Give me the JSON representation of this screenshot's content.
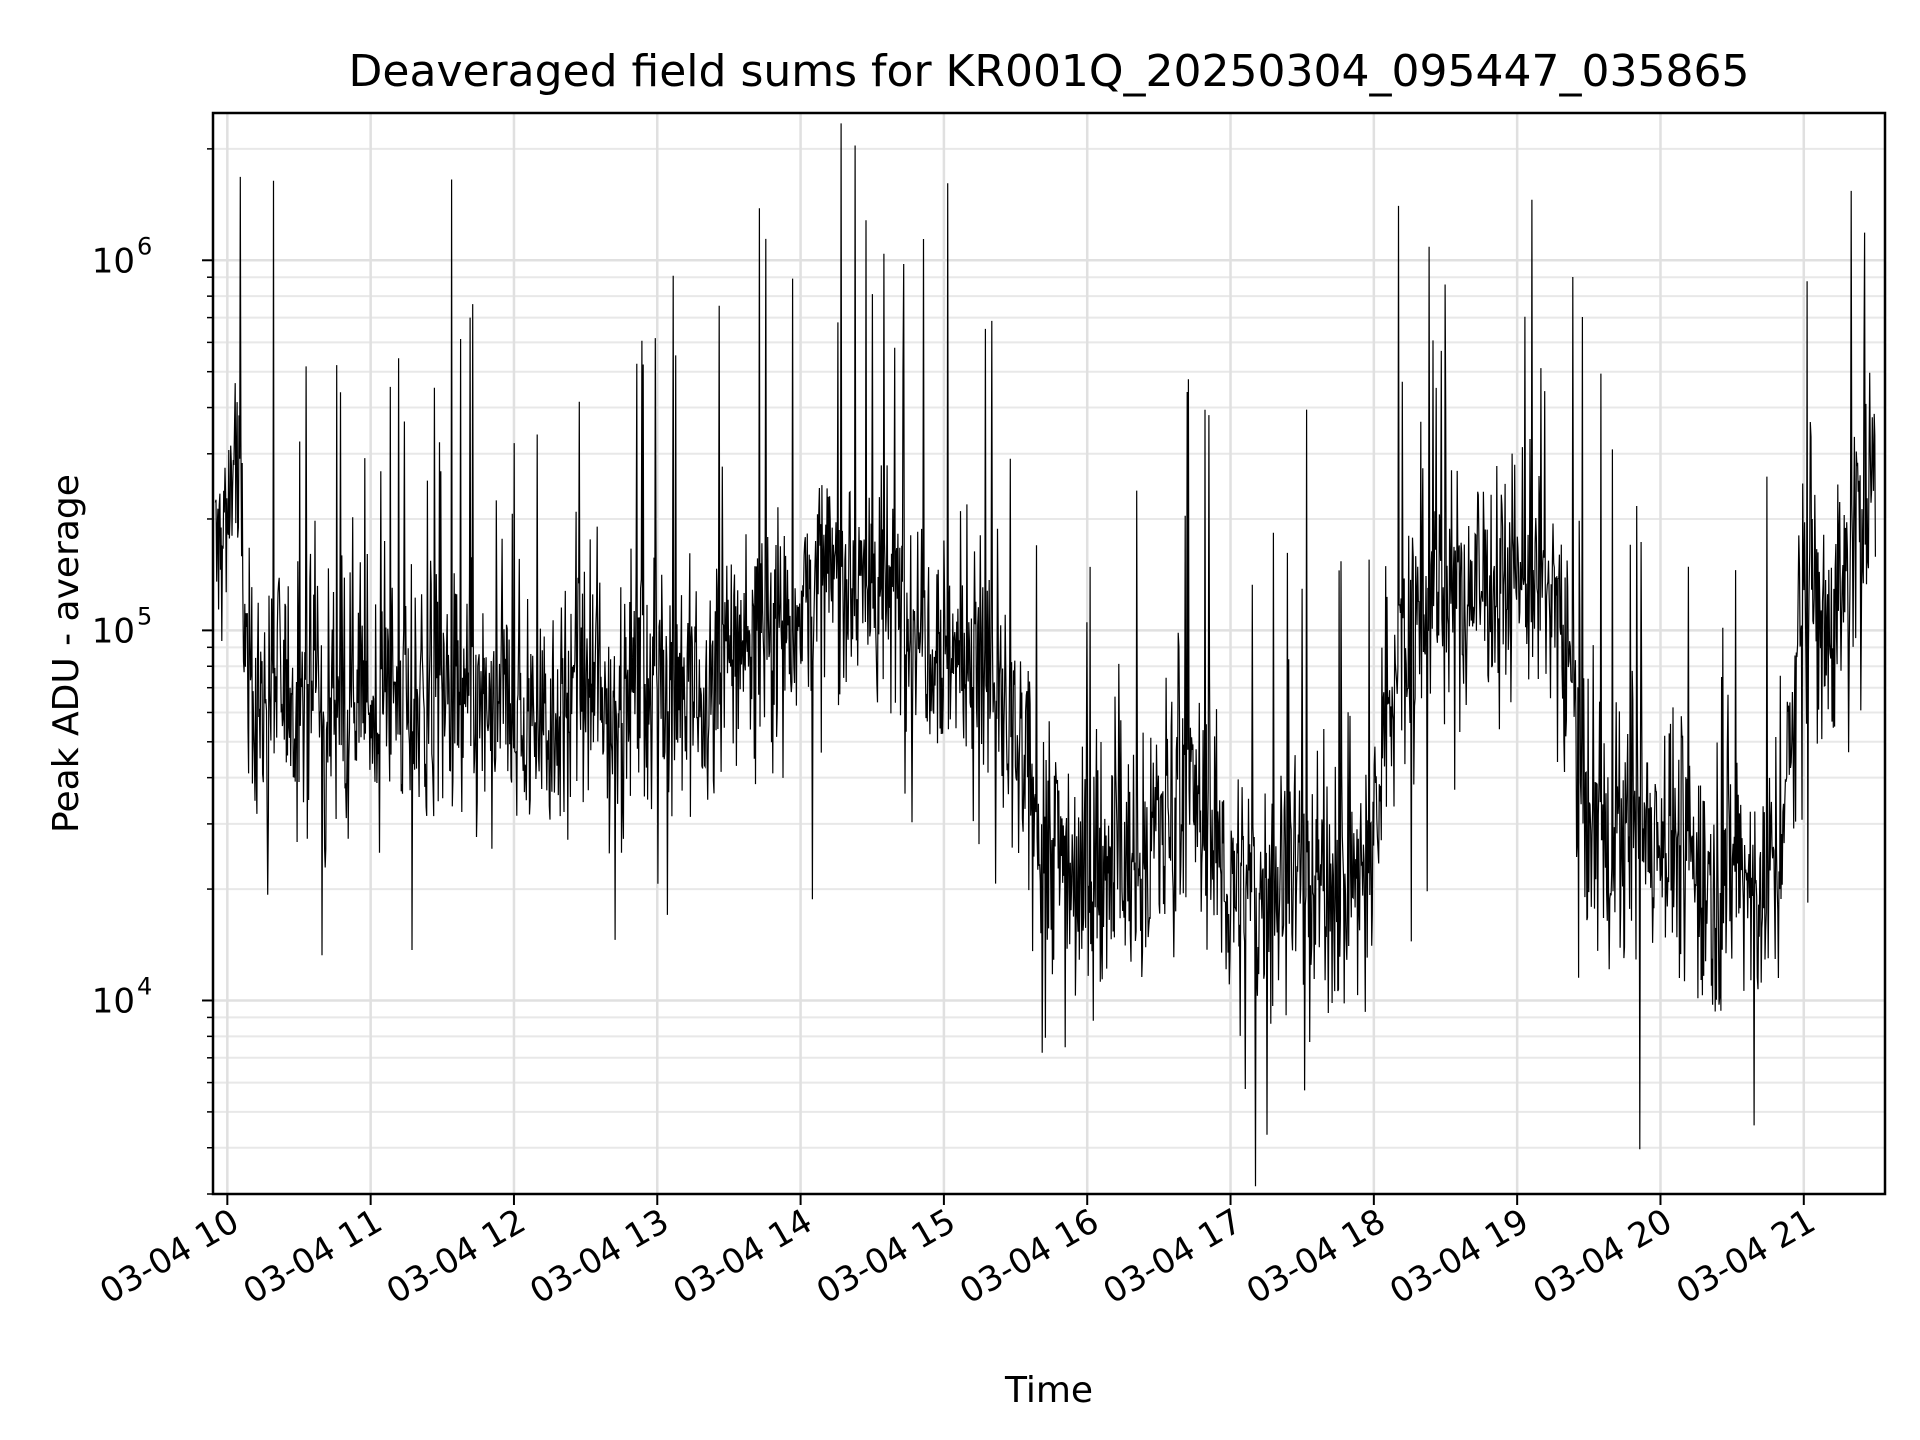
{
  "chart_data": {
    "type": "line",
    "title": "Deaveraged field sums for KR001Q_20250304_095447_035865",
    "xlabel": "Time",
    "ylabel": "Peak ADU - average",
    "yscale": "log",
    "ylim": [
      3000,
      2500000
    ],
    "xlim": [
      "2025-03-04T09:54",
      "2025-03-04T21:34"
    ],
    "grid": true,
    "line_color": "#000000",
    "x_ticks": [
      "2025-03-04T10:00",
      "2025-03-04T11:00",
      "2025-03-04T12:00",
      "2025-03-04T13:00",
      "2025-03-04T14:00",
      "2025-03-04T15:00",
      "2025-03-04T16:00",
      "2025-03-04T17:00",
      "2025-03-04T18:00",
      "2025-03-04T19:00",
      "2025-03-04T20:00",
      "2025-03-04T21:00"
    ],
    "x_tick_labels": [
      "03-04 10",
      "03-04 11",
      "03-04 12",
      "03-04 13",
      "03-04 14",
      "03-04 15",
      "03-04 16",
      "03-04 17",
      "03-04 18",
      "03-04 19",
      "03-04 20",
      "03-04 21"
    ],
    "y_ticks": [
      10000,
      100000,
      1000000
    ],
    "y_tick_bases": [
      "10",
      "10",
      "10"
    ],
    "y_tick_exponents": [
      "4",
      "5",
      "6"
    ],
    "series": [
      {
        "x": [
          "2025-03-04T09:55",
          "2025-03-04T10:00",
          "2025-03-04T10:03",
          "2025-03-04T10:08",
          "2025-03-04T10:13",
          "2025-03-04T10:17",
          "2025-03-04T10:25",
          "2025-03-04T10:30",
          "2025-03-04T10:35",
          "2025-03-04T10:40",
          "2025-03-04T10:45",
          "2025-03-04T10:48",
          "2025-03-04T10:52",
          "2025-03-04T11:00",
          "2025-03-04T11:06",
          "2025-03-04T11:10",
          "2025-03-04T11:20",
          "2025-03-04T11:30",
          "2025-03-04T11:40",
          "2025-03-04T11:50",
          "2025-03-04T12:00",
          "2025-03-04T12:10",
          "2025-03-04T12:20",
          "2025-03-04T12:30",
          "2025-03-04T12:40",
          "2025-03-04T12:50",
          "2025-03-04T13:00",
          "2025-03-04T13:10",
          "2025-03-04T13:20",
          "2025-03-04T13:30",
          "2025-03-04T13:40",
          "2025-03-04T13:50",
          "2025-03-04T13:55",
          "2025-03-04T14:00",
          "2025-03-04T14:10",
          "2025-03-04T14:20",
          "2025-03-04T14:30",
          "2025-03-04T14:40",
          "2025-03-04T14:50",
          "2025-03-04T15:00",
          "2025-03-04T15:10",
          "2025-03-04T15:20",
          "2025-03-04T15:30",
          "2025-03-04T15:40",
          "2025-03-04T15:50",
          "2025-03-04T16:00",
          "2025-03-04T16:10",
          "2025-03-04T16:20",
          "2025-03-04T16:30",
          "2025-03-04T16:40",
          "2025-03-04T16:50",
          "2025-03-04T17:00",
          "2025-03-04T17:10",
          "2025-03-04T17:20",
          "2025-03-04T17:30",
          "2025-03-04T17:40",
          "2025-03-04T17:50",
          "2025-03-04T18:00",
          "2025-03-04T18:10",
          "2025-03-04T18:20",
          "2025-03-04T18:30",
          "2025-03-04T18:40",
          "2025-03-04T18:50",
          "2025-03-04T19:00",
          "2025-03-04T19:10",
          "2025-03-04T19:20",
          "2025-03-04T19:30",
          "2025-03-04T19:40",
          "2025-03-04T19:50",
          "2025-03-04T20:00",
          "2025-03-04T20:10",
          "2025-03-04T20:20",
          "2025-03-04T20:30",
          "2025-03-04T20:40",
          "2025-03-04T20:50",
          "2025-03-04T21:00",
          "2025-03-04T21:10",
          "2025-03-04T21:20",
          "2025-03-04T21:30"
        ],
        "y": [
          150000,
          200000,
          330000,
          90000,
          60000,
          70000,
          70000,
          65000,
          72000,
          60000,
          70000,
          75000,
          80000,
          60000,
          65000,
          70000,
          60000,
          65000,
          62000,
          58000,
          60000,
          58000,
          62000,
          70000,
          60000,
          75000,
          80000,
          70000,
          62000,
          85000,
          100000,
          110000,
          105000,
          120000,
          130000,
          150000,
          130000,
          120000,
          110000,
          95000,
          80000,
          75000,
          45000,
          30000,
          25000,
          20000,
          25000,
          22000,
          30000,
          40000,
          30000,
          20000,
          18000,
          22000,
          25000,
          20000,
          20000,
          25000,
          100000,
          110000,
          120000,
          130000,
          140000,
          150000,
          130000,
          110000,
          30000,
          25000,
          28000,
          30000,
          25000,
          20000,
          25000,
          20000,
          22000,
          150000,
          100000,
          160000,
          300000
        ]
      }
    ]
  }
}
